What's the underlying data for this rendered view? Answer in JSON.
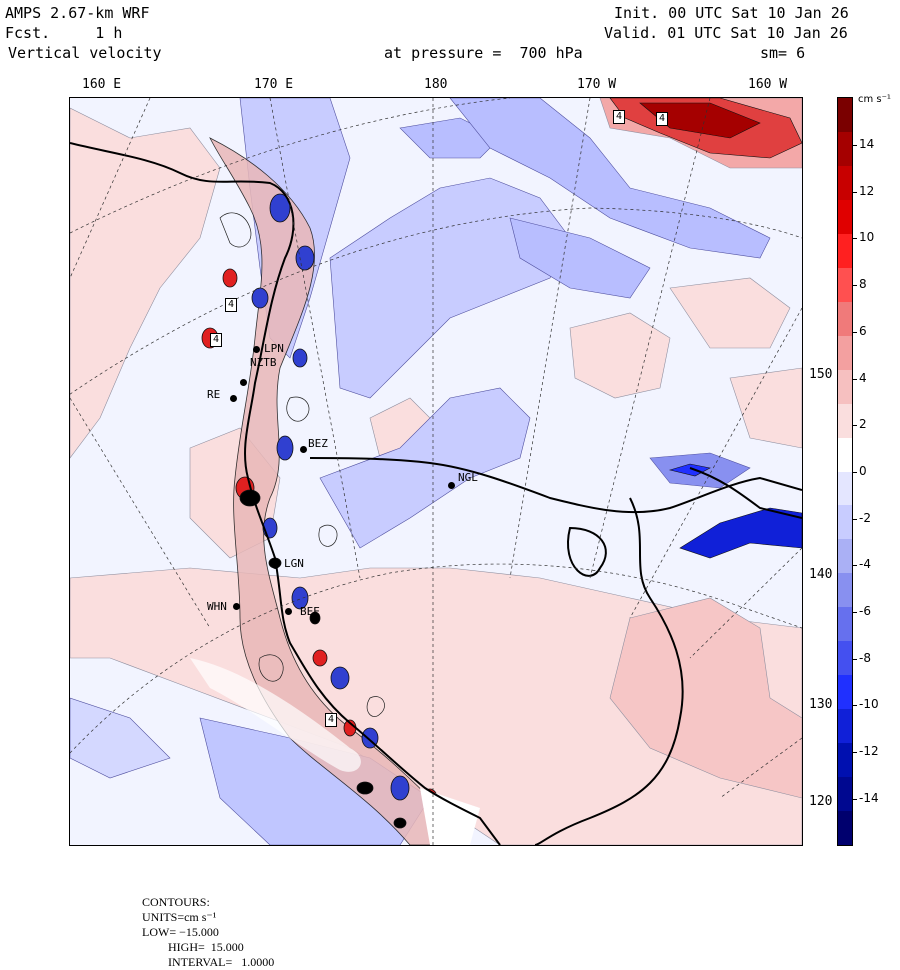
{
  "header": {
    "model": "AMPS 2.67-km WRF",
    "forecast": "Fcst.     1 h",
    "field": "Vertical velocity",
    "init": "Init. 00 UTC Sat 10 Jan 26",
    "valid": "Valid. 01 UTC Sat 10 Jan 26",
    "level": "at pressure =  700 hPa",
    "smoothing": "sm= 6"
  },
  "longitude_labels": [
    "160 E",
    "170 E",
    "180",
    "170 W",
    "160 W"
  ],
  "latitude_labels": [
    "150 W",
    "140 W",
    "130 W",
    "120 W"
  ],
  "colorbar": {
    "unit": "cm s⁻¹",
    "tick_labels": [
      "14",
      "12",
      "10",
      "8",
      "6",
      "4",
      "2",
      "0",
      "-2",
      "-4",
      "-6",
      "-8",
      "-10",
      "-12",
      "-14"
    ],
    "colors_top_to_bottom": [
      "#7a0000",
      "#a50000",
      "#c80000",
      "#e00000",
      "#ff2020",
      "#ff5050",
      "#f07a7a",
      "#f3a0a0",
      "#f6c0c0",
      "#fadede",
      "#ffffff",
      "#e4e6ff",
      "#c8ccff",
      "#aab0f5",
      "#8890f0",
      "#6670ee",
      "#4450f0",
      "#2030ff",
      "#1020d8",
      "#0010b0",
      "#000890",
      "#00006e"
    ]
  },
  "stations": [
    {
      "label": "NZTB"
    },
    {
      "label": "LPN"
    },
    {
      "label": "NGL"
    },
    {
      "label": "WHN"
    },
    {
      "label": "BEE"
    },
    {
      "label": "LGN"
    },
    {
      "label": "RE"
    },
    {
      "label": "BEZ"
    }
  ],
  "contour_markers": [
    "4",
    "4",
    "4",
    "4",
    "4"
  ],
  "footer": {
    "contours_label": "CONTOURS:",
    "units_label": "UNITS=cm s⁻¹",
    "low": "LOW= −15.000",
    "high": "HIGH=  15.000",
    "interval": "INTERVAL=   1.0000"
  }
}
